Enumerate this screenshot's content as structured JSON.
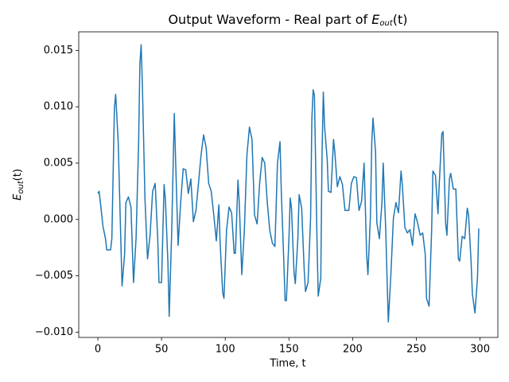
{
  "chart_data": {
    "type": "line",
    "title": {
      "text": "Output Waveform - Real part of ",
      "symbol": "E",
      "subscript": "out",
      "argument": "(t)"
    },
    "xlabel": "Time, t",
    "ylabel": {
      "symbol": "E",
      "subscript": "out",
      "argument": "(t)"
    },
    "color": "#1f77b4",
    "xlim": [
      -15,
      314
    ],
    "ylim": [
      -0.01047,
      0.01665
    ],
    "xticks": [
      0,
      50,
      100,
      150,
      200,
      250,
      300
    ],
    "yticks": [
      {
        "value": -0.01,
        "label": "−0.010"
      },
      {
        "value": -0.005,
        "label": "−0.005"
      },
      {
        "value": 0,
        "label": "0.000"
      },
      {
        "value": 0.005,
        "label": "0.005"
      },
      {
        "value": 0.01,
        "label": "0.010"
      },
      {
        "value": 0.015,
        "label": "0.015"
      }
    ],
    "x": [
      0,
      1,
      2,
      4,
      6,
      7,
      10,
      11,
      13,
      14,
      16,
      18,
      19,
      21,
      22,
      24,
      26,
      28,
      30,
      32,
      33,
      34,
      35,
      37,
      39,
      41,
      43,
      45,
      47,
      48,
      50,
      52,
      53,
      55,
      56,
      58,
      60,
      61,
      63,
      65,
      67,
      69,
      71,
      73,
      75,
      77,
      79,
      81,
      83,
      85,
      87,
      89,
      91,
      93,
      95,
      96,
      98,
      99,
      101,
      103,
      105,
      107,
      108,
      110,
      111,
      113,
      115,
      117,
      119,
      121,
      123,
      125,
      127,
      129,
      131,
      133,
      135,
      137,
      139,
      141,
      143,
      144,
      146,
      147,
      148,
      150,
      151,
      152,
      154,
      155,
      157,
      158,
      160,
      162,
      163,
      165,
      167,
      168,
      169,
      170,
      172,
      173,
      175,
      176,
      177,
      178,
      180,
      181,
      183,
      185,
      186,
      188,
      190,
      192,
      194,
      197,
      199,
      201,
      203,
      205,
      207,
      209,
      211,
      212,
      214,
      215,
      216,
      218,
      219,
      221,
      223,
      224,
      226,
      228,
      230,
      232,
      234,
      236,
      238,
      239,
      241,
      243,
      245,
      247,
      249,
      251,
      253,
      255,
      257,
      258,
      260,
      262,
      263,
      265,
      267,
      268,
      270,
      271,
      273,
      274,
      276,
      277,
      279,
      281,
      283,
      284,
      286,
      288,
      290,
      291,
      293,
      294,
      296,
      298,
      299
    ],
    "values": [
      0.0023,
      0.0025,
      0.0015,
      -0.0006,
      -0.0017,
      -0.0027,
      -0.0027,
      -0.0017,
      0.0099,
      0.0111,
      0.0068,
      -0.0017,
      -0.0059,
      -0.0031,
      0.0015,
      0.002,
      0.0011,
      -0.0056,
      -0.0017,
      0.0068,
      0.0138,
      0.0155,
      0.0117,
      0.0018,
      -0.0035,
      -0.0014,
      0.0025,
      0.0032,
      -0.0017,
      -0.0056,
      -0.0056,
      0.0031,
      0.0018,
      -0.0038,
      -0.0086,
      -0.001,
      0.0094,
      0.0054,
      -0.0023,
      0.0015,
      0.0045,
      0.0044,
      0.0023,
      0.0036,
      -0.0002,
      0.0008,
      0.0032,
      0.0057,
      0.0075,
      0.0064,
      0.0032,
      0.0025,
      0.0004,
      -0.0019,
      0.0013,
      -0.0021,
      -0.0065,
      -0.007,
      -0.001,
      0.0011,
      0.0006,
      -0.003,
      -0.003,
      0.0035,
      0.0015,
      -0.0049,
      -0.001,
      0.0057,
      0.0082,
      0.0071,
      0.0004,
      -0.0004,
      0.0032,
      0.0055,
      0.005,
      0.0015,
      -0.001,
      -0.0021,
      -0.0024,
      0.005,
      0.0069,
      0.0025,
      -0.0038,
      -0.0072,
      -0.0072,
      -0.0017,
      0.0019,
      0.001,
      -0.0047,
      -0.0057,
      -0.0017,
      0.0022,
      0.001,
      -0.0045,
      -0.0064,
      -0.0056,
      0.0001,
      0.0089,
      0.0115,
      0.011,
      -0.0017,
      -0.0068,
      -0.0052,
      0.006,
      0.0113,
      0.0082,
      0.0054,
      0.0025,
      0.0024,
      0.0071,
      0.006,
      0.0029,
      0.0038,
      0.0031,
      0.0008,
      0.0008,
      0.0032,
      0.0038,
      0.0037,
      0.0008,
      0.0016,
      0.005,
      -0.0031,
      -0.0049,
      0.0004,
      0.0068,
      0.009,
      0.006,
      -0.0003,
      -0.0017,
      0.0015,
      0.005,
      -0.001,
      -0.0091,
      -0.0049,
      0.0001,
      0.0015,
      0.0006,
      0.0043,
      0.0031,
      -0.0007,
      -0.0012,
      -0.0009,
      -0.0023,
      0.0005,
      -0.0003,
      -0.0014,
      -0.0012,
      -0.0031,
      -0.007,
      -0.0077,
      -0.001,
      0.0043,
      0.0039,
      0.0005,
      0.0032,
      0.0076,
      0.0078,
      -0.0003,
      -0.0014,
      0.0036,
      0.0041,
      0.0027,
      0.0027,
      -0.0035,
      -0.0037,
      -0.0015,
      -0.0017,
      0.001,
      0.0004,
      -0.0038,
      -0.0066,
      -0.0083,
      -0.0052,
      -0.0008
    ]
  }
}
